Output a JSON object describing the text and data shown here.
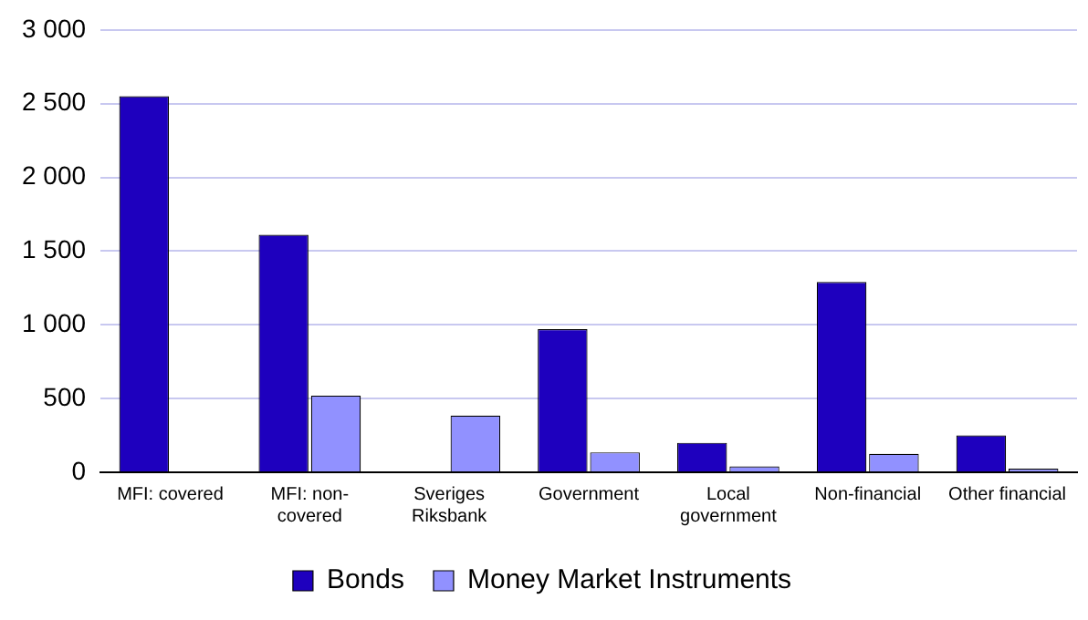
{
  "chart_data": {
    "type": "bar",
    "categories": [
      "MFI: covered",
      "MFI: non-covered",
      "Sveriges Riksbank",
      "Government",
      "Local government",
      "Non-financial",
      "Other financial"
    ],
    "series": [
      {
        "name": "Bonds",
        "color": "#1e00be",
        "values": [
          2550,
          1610,
          0,
          970,
          200,
          1290,
          250
        ]
      },
      {
        "name": "Money Market Instruments",
        "color": "#9191ff",
        "values": [
          0,
          520,
          385,
          135,
          40,
          125,
          25
        ]
      }
    ],
    "ylim": [
      0,
      3000
    ],
    "yticks": [
      {
        "value": 0,
        "label": "0"
      },
      {
        "value": 500,
        "label": "500"
      },
      {
        "value": 1000,
        "label": "1 000"
      },
      {
        "value": 1500,
        "label": "1 500"
      },
      {
        "value": 2000,
        "label": "2 000"
      },
      {
        "value": 2500,
        "label": "2 500"
      },
      {
        "value": 3000,
        "label": "3 000"
      }
    ],
    "grid": "y",
    "legend": "bottom"
  }
}
